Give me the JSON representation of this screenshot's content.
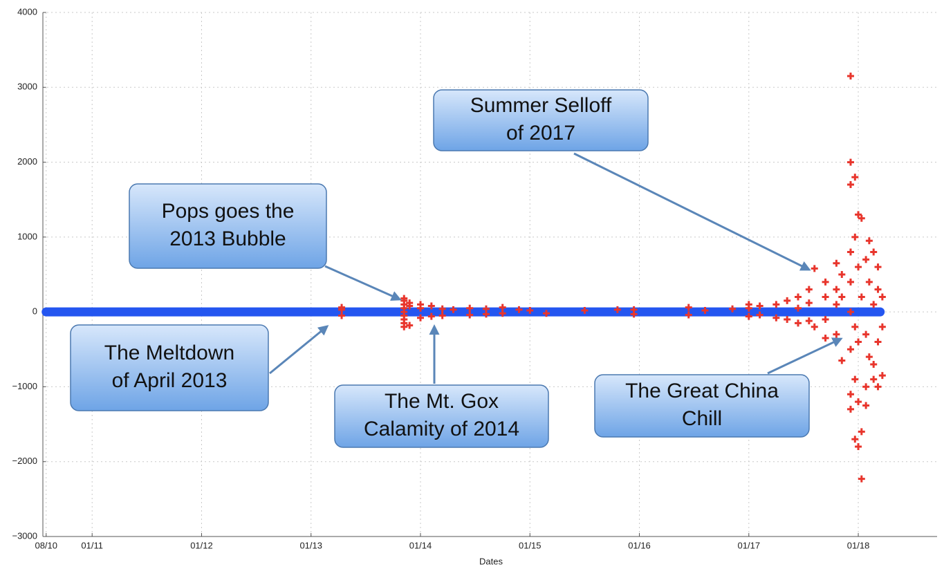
{
  "chart_data": {
    "type": "scatter",
    "xlabel": "Dates",
    "xlim": [
      2010.55,
      2018.72
    ],
    "ylim": [
      -3000,
      4000
    ],
    "xticks": [
      {
        "value": 2010.58,
        "label": "08/10"
      },
      {
        "value": 2011,
        "label": "01/11"
      },
      {
        "value": 2012,
        "label": "01/12"
      },
      {
        "value": 2013,
        "label": "01/13"
      },
      {
        "value": 2014,
        "label": "01/14"
      },
      {
        "value": 2015,
        "label": "01/15"
      },
      {
        "value": 2016,
        "label": "01/16"
      },
      {
        "value": 2017,
        "label": "01/17"
      },
      {
        "value": 2018,
        "label": "01/18"
      }
    ],
    "yticks": [
      {
        "value": -3000,
        "label": "−3000"
      },
      {
        "value": -2000,
        "label": "−2000"
      },
      {
        "value": -1000,
        "label": "−1000"
      },
      0,
      1000,
      2000,
      3000,
      4000
    ],
    "grid": true,
    "series": [
      {
        "color": "#2456f0",
        "style": "line",
        "x": [
          2010.58,
          2012,
          2014,
          2016,
          2018.2
        ],
        "values": [
          0,
          0,
          0,
          0,
          0
        ]
      },
      {
        "color": "#e8352c",
        "style": "marker",
        "x": [
          2013.28,
          2013.28,
          2013.28,
          2013.85,
          2013.85,
          2013.85,
          2013.85,
          2013.85,
          2013.85,
          2013.85,
          2013.85,
          2013.85,
          2013.9,
          2013.9,
          2013.9,
          2014.0,
          2014.0,
          2014.0,
          2014.1,
          2014.1,
          2014.2,
          2014.2,
          2014.3,
          2014.45,
          2014.45,
          2014.6,
          2014.6,
          2014.75,
          2014.75,
          2014.9,
          2015.0,
          2015.15,
          2015.5,
          2015.8,
          2015.95,
          2015.95,
          2016.45,
          2016.45,
          2016.6,
          2016.85,
          2017.0,
          2017.0,
          2017.0,
          2017.1,
          2017.1,
          2017.25,
          2017.25,
          2017.35,
          2017.35,
          2017.45,
          2017.45,
          2017.45,
          2017.55,
          2017.55,
          2017.55,
          2017.6,
          2017.6,
          2017.7,
          2017.7,
          2017.7,
          2017.7,
          2017.8,
          2017.8,
          2017.8,
          2017.8,
          2017.85,
          2017.85,
          2017.85,
          2017.93,
          2017.93,
          2017.93,
          2017.93,
          2017.93,
          2017.93,
          2017.93,
          2017.93,
          2017.93,
          2017.97,
          2017.97,
          2017.97,
          2017.97,
          2017.97,
          2018.0,
          2018.0,
          2018.0,
          2018.0,
          2018.0,
          2018.03,
          2018.03,
          2018.03,
          2018.03,
          2018.07,
          2018.07,
          2018.07,
          2018.07,
          2018.1,
          2018.1,
          2018.1,
          2018.14,
          2018.14,
          2018.14,
          2018.14,
          2018.18,
          2018.18,
          2018.18,
          2018.18,
          2018.22,
          2018.22,
          2018.22
        ],
        "values": [
          30,
          -50,
          60,
          180,
          100,
          50,
          -100,
          -200,
          -50,
          150,
          0,
          -150,
          120,
          -180,
          80,
          100,
          -80,
          50,
          80,
          -60,
          40,
          -50,
          30,
          50,
          -40,
          40,
          -30,
          60,
          -20,
          30,
          20,
          -20,
          20,
          30,
          -30,
          30,
          60,
          -40,
          20,
          40,
          50,
          -60,
          100,
          80,
          -40,
          100,
          -80,
          150,
          -100,
          200,
          -150,
          50,
          300,
          120,
          -120,
          580,
          -200,
          400,
          200,
          -100,
          -350,
          650,
          300,
          -300,
          100,
          500,
          -650,
          200,
          3150,
          2000,
          1700,
          800,
          400,
          -500,
          -1100,
          -1300,
          0,
          1800,
          1000,
          -200,
          -900,
          -1700,
          1300,
          600,
          -400,
          -1200,
          -1800,
          1250,
          200,
          -1600,
          -2230,
          700,
          -300,
          -1000,
          -1250,
          950,
          400,
          -600,
          800,
          100,
          -700,
          -900,
          600,
          300,
          -400,
          -1000,
          200,
          -200,
          -850
        ]
      }
    ],
    "annotations": [
      [
        "Summer Selloff",
        "of 2017"
      ],
      [
        "Pops goes the",
        "2013 Bubble"
      ],
      [
        "The Meltdown",
        "of April 2013"
      ],
      [
        "The Mt. Gox",
        "Calamity of 2014"
      ],
      [
        "The Great China",
        "Chill"
      ]
    ]
  }
}
